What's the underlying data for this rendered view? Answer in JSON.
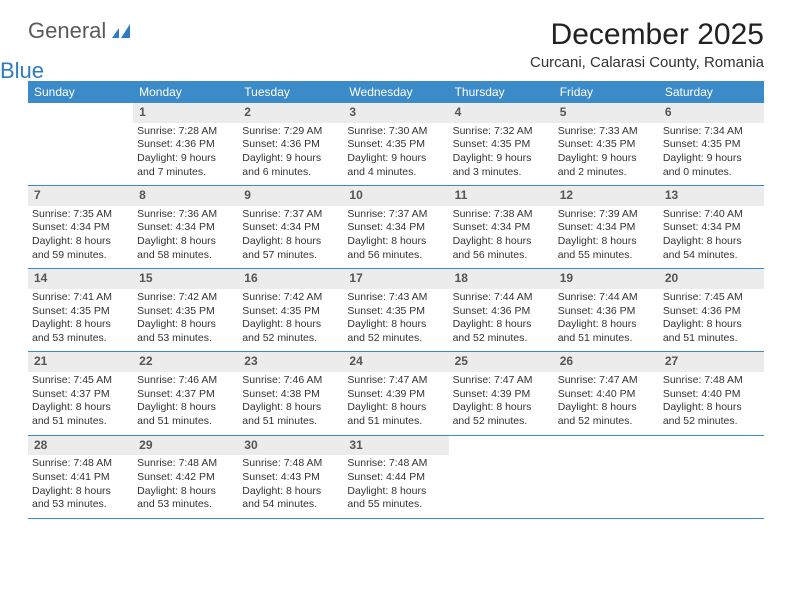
{
  "logo": {
    "text1": "General",
    "text2": "Blue"
  },
  "title": "December 2025",
  "location": "Curcani, Calarasi County, Romania",
  "colors": {
    "header_bg": "#3b8bc9",
    "header_text": "#ffffff",
    "daynum_bg": "#ececec",
    "rule": "#3b8bc9",
    "logo_gray": "#5a5a5a",
    "logo_blue": "#2f7bbf"
  },
  "weekdays": [
    "Sunday",
    "Monday",
    "Tuesday",
    "Wednesday",
    "Thursday",
    "Friday",
    "Saturday"
  ],
  "weeks": [
    [
      {
        "n": "",
        "sr": "",
        "ss": "",
        "dl": ""
      },
      {
        "n": "1",
        "sr": "Sunrise: 7:28 AM",
        "ss": "Sunset: 4:36 PM",
        "dl": "Daylight: 9 hours and 7 minutes."
      },
      {
        "n": "2",
        "sr": "Sunrise: 7:29 AM",
        "ss": "Sunset: 4:36 PM",
        "dl": "Daylight: 9 hours and 6 minutes."
      },
      {
        "n": "3",
        "sr": "Sunrise: 7:30 AM",
        "ss": "Sunset: 4:35 PM",
        "dl": "Daylight: 9 hours and 4 minutes."
      },
      {
        "n": "4",
        "sr": "Sunrise: 7:32 AM",
        "ss": "Sunset: 4:35 PM",
        "dl": "Daylight: 9 hours and 3 minutes."
      },
      {
        "n": "5",
        "sr": "Sunrise: 7:33 AM",
        "ss": "Sunset: 4:35 PM",
        "dl": "Daylight: 9 hours and 2 minutes."
      },
      {
        "n": "6",
        "sr": "Sunrise: 7:34 AM",
        "ss": "Sunset: 4:35 PM",
        "dl": "Daylight: 9 hours and 0 minutes."
      }
    ],
    [
      {
        "n": "7",
        "sr": "Sunrise: 7:35 AM",
        "ss": "Sunset: 4:34 PM",
        "dl": "Daylight: 8 hours and 59 minutes."
      },
      {
        "n": "8",
        "sr": "Sunrise: 7:36 AM",
        "ss": "Sunset: 4:34 PM",
        "dl": "Daylight: 8 hours and 58 minutes."
      },
      {
        "n": "9",
        "sr": "Sunrise: 7:37 AM",
        "ss": "Sunset: 4:34 PM",
        "dl": "Daylight: 8 hours and 57 minutes."
      },
      {
        "n": "10",
        "sr": "Sunrise: 7:37 AM",
        "ss": "Sunset: 4:34 PM",
        "dl": "Daylight: 8 hours and 56 minutes."
      },
      {
        "n": "11",
        "sr": "Sunrise: 7:38 AM",
        "ss": "Sunset: 4:34 PM",
        "dl": "Daylight: 8 hours and 56 minutes."
      },
      {
        "n": "12",
        "sr": "Sunrise: 7:39 AM",
        "ss": "Sunset: 4:34 PM",
        "dl": "Daylight: 8 hours and 55 minutes."
      },
      {
        "n": "13",
        "sr": "Sunrise: 7:40 AM",
        "ss": "Sunset: 4:34 PM",
        "dl": "Daylight: 8 hours and 54 minutes."
      }
    ],
    [
      {
        "n": "14",
        "sr": "Sunrise: 7:41 AM",
        "ss": "Sunset: 4:35 PM",
        "dl": "Daylight: 8 hours and 53 minutes."
      },
      {
        "n": "15",
        "sr": "Sunrise: 7:42 AM",
        "ss": "Sunset: 4:35 PM",
        "dl": "Daylight: 8 hours and 53 minutes."
      },
      {
        "n": "16",
        "sr": "Sunrise: 7:42 AM",
        "ss": "Sunset: 4:35 PM",
        "dl": "Daylight: 8 hours and 52 minutes."
      },
      {
        "n": "17",
        "sr": "Sunrise: 7:43 AM",
        "ss": "Sunset: 4:35 PM",
        "dl": "Daylight: 8 hours and 52 minutes."
      },
      {
        "n": "18",
        "sr": "Sunrise: 7:44 AM",
        "ss": "Sunset: 4:36 PM",
        "dl": "Daylight: 8 hours and 52 minutes."
      },
      {
        "n": "19",
        "sr": "Sunrise: 7:44 AM",
        "ss": "Sunset: 4:36 PM",
        "dl": "Daylight: 8 hours and 51 minutes."
      },
      {
        "n": "20",
        "sr": "Sunrise: 7:45 AM",
        "ss": "Sunset: 4:36 PM",
        "dl": "Daylight: 8 hours and 51 minutes."
      }
    ],
    [
      {
        "n": "21",
        "sr": "Sunrise: 7:45 AM",
        "ss": "Sunset: 4:37 PM",
        "dl": "Daylight: 8 hours and 51 minutes."
      },
      {
        "n": "22",
        "sr": "Sunrise: 7:46 AM",
        "ss": "Sunset: 4:37 PM",
        "dl": "Daylight: 8 hours and 51 minutes."
      },
      {
        "n": "23",
        "sr": "Sunrise: 7:46 AM",
        "ss": "Sunset: 4:38 PM",
        "dl": "Daylight: 8 hours and 51 minutes."
      },
      {
        "n": "24",
        "sr": "Sunrise: 7:47 AM",
        "ss": "Sunset: 4:39 PM",
        "dl": "Daylight: 8 hours and 51 minutes."
      },
      {
        "n": "25",
        "sr": "Sunrise: 7:47 AM",
        "ss": "Sunset: 4:39 PM",
        "dl": "Daylight: 8 hours and 52 minutes."
      },
      {
        "n": "26",
        "sr": "Sunrise: 7:47 AM",
        "ss": "Sunset: 4:40 PM",
        "dl": "Daylight: 8 hours and 52 minutes."
      },
      {
        "n": "27",
        "sr": "Sunrise: 7:48 AM",
        "ss": "Sunset: 4:40 PM",
        "dl": "Daylight: 8 hours and 52 minutes."
      }
    ],
    [
      {
        "n": "28",
        "sr": "Sunrise: 7:48 AM",
        "ss": "Sunset: 4:41 PM",
        "dl": "Daylight: 8 hours and 53 minutes."
      },
      {
        "n": "29",
        "sr": "Sunrise: 7:48 AM",
        "ss": "Sunset: 4:42 PM",
        "dl": "Daylight: 8 hours and 53 minutes."
      },
      {
        "n": "30",
        "sr": "Sunrise: 7:48 AM",
        "ss": "Sunset: 4:43 PM",
        "dl": "Daylight: 8 hours and 54 minutes."
      },
      {
        "n": "31",
        "sr": "Sunrise: 7:48 AM",
        "ss": "Sunset: 4:44 PM",
        "dl": "Daylight: 8 hours and 55 minutes."
      },
      {
        "n": "",
        "sr": "",
        "ss": "",
        "dl": ""
      },
      {
        "n": "",
        "sr": "",
        "ss": "",
        "dl": ""
      },
      {
        "n": "",
        "sr": "",
        "ss": "",
        "dl": ""
      }
    ]
  ]
}
